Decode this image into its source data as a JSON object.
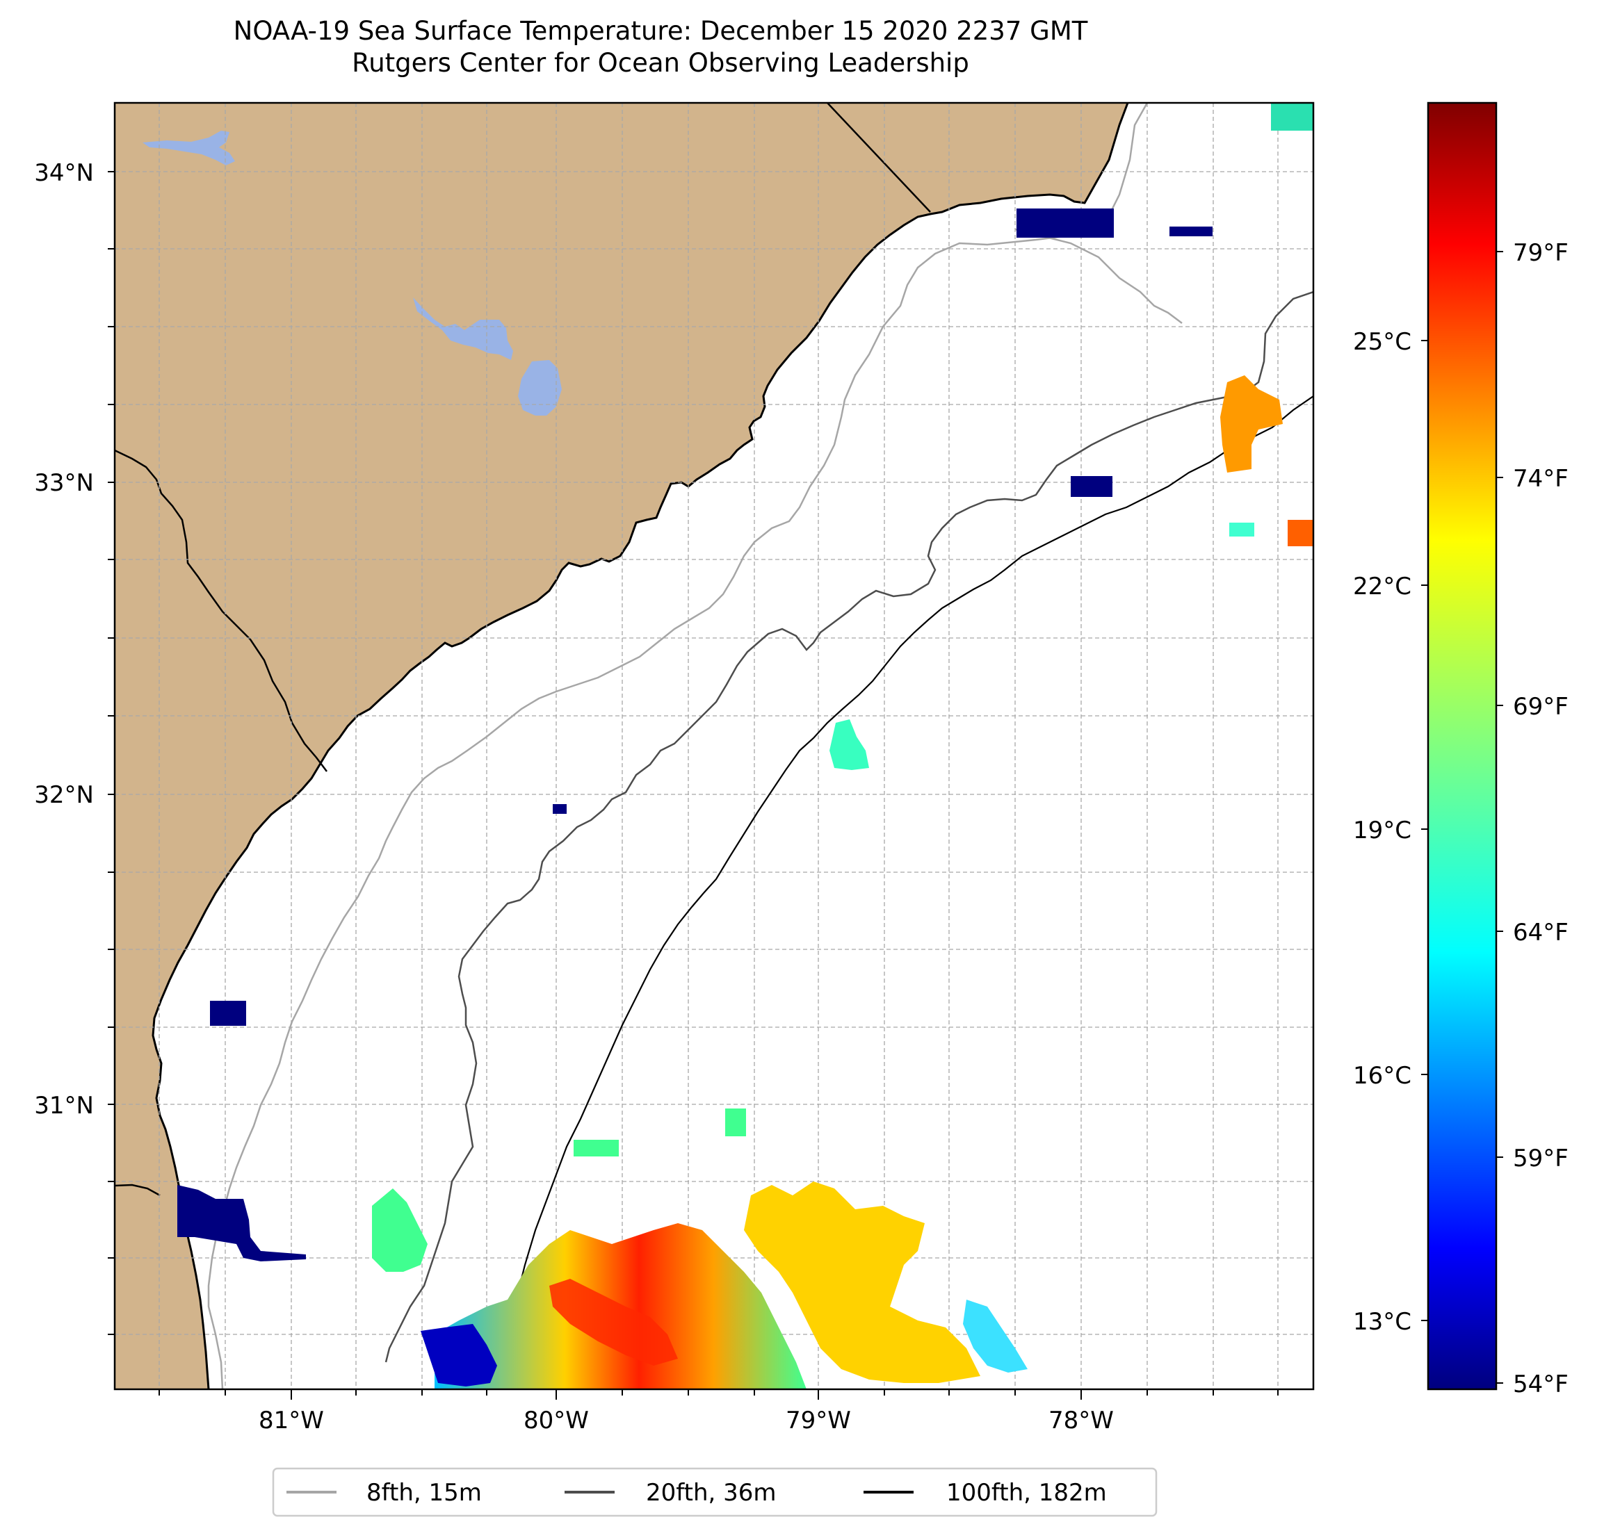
{
  "title": {
    "line1": "NOAA-19 Sea Surface Temperature: December 15 2020 2237 GMT",
    "line2": "Rutgers Center for Ocean Observing Leadership"
  },
  "map": {
    "lon_range": [
      -81.68,
      -77.12
    ],
    "lat_range": [
      30.08,
      34.22
    ],
    "lon_ticks": [
      "81°W",
      "80°W",
      "79°W",
      "78°W"
    ],
    "lat_ticks": [
      "34°N",
      "33°N",
      "32°N",
      "31°N"
    ],
    "land_color": "#d2b48c",
    "water_color": "#ffffff",
    "lake_color": "#99b3e6",
    "grid": true
  },
  "colorbar": {
    "colormap": "jet",
    "celsius_ticks": [
      "25°C",
      "22°C",
      "19°C",
      "16°C",
      "13°C"
    ],
    "fahrenheit_ticks": [
      "79°F",
      "74°F",
      "69°F",
      "64°F",
      "59°F",
      "54°F"
    ]
  },
  "legend": {
    "items": [
      {
        "label": "8fth, 15m",
        "color": "#a6a6a6"
      },
      {
        "label": "20fth, 36m",
        "color": "#4d4d4d"
      },
      {
        "label": "100fth, 182m",
        "color": "#000000"
      }
    ]
  }
}
